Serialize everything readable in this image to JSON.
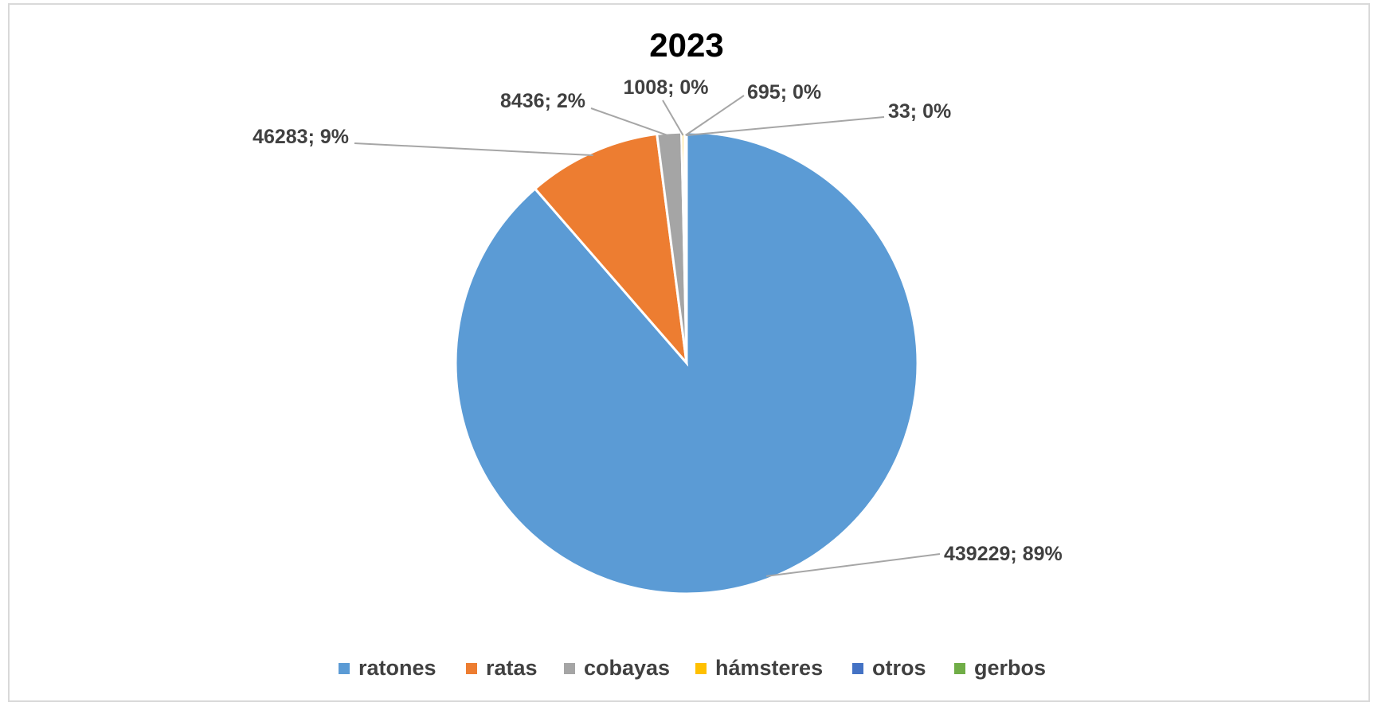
{
  "chart_data": {
    "type": "pie",
    "title": "2023",
    "slices": [
      {
        "name": "ratones",
        "value": 439229,
        "label": "439229; 89%",
        "color": "#5b9bd5"
      },
      {
        "name": "ratas",
        "value": 46283,
        "label": "46283; 9%",
        "color": "#ed7d31"
      },
      {
        "name": "cobayas",
        "value": 8436,
        "label": "8436; 2%",
        "color": "#a5a5a5"
      },
      {
        "name": "hámsteres",
        "value": 1008,
        "label": "1008; 0%",
        "color": "#ffc000"
      },
      {
        "name": "otros",
        "value": 695,
        "label": "695; 0%",
        "color": "#4472c4"
      },
      {
        "name": "gerbos",
        "value": 33,
        "label": "33; 0%",
        "color": "#70ad47"
      }
    ],
    "start_angle": "12 o'clock",
    "direction": "counterclockwise",
    "legend_position": "bottom"
  }
}
